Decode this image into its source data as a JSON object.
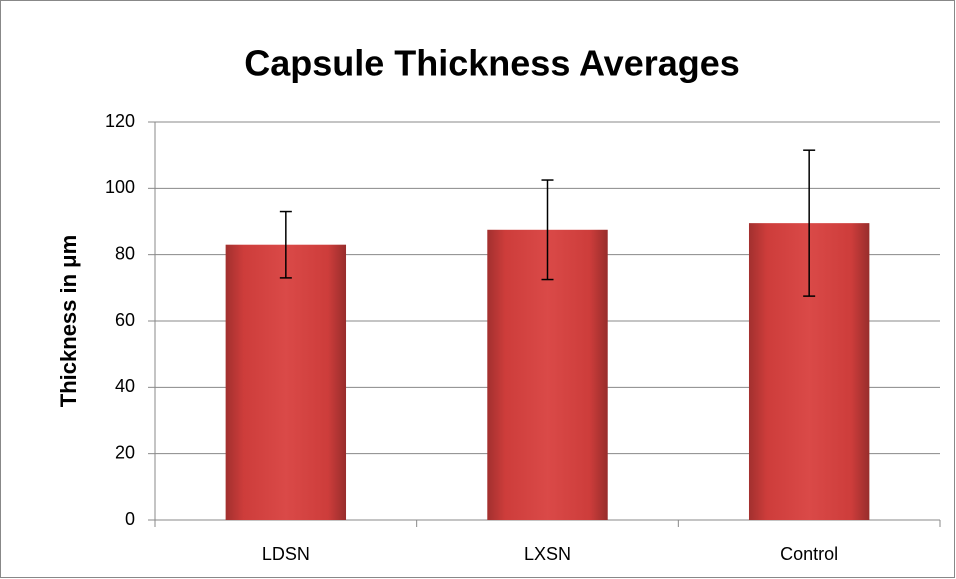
{
  "chart_data": {
    "type": "bar",
    "title": "Capsule Thickness Averages",
    "y_label": "Thickness in μm",
    "categories": [
      "LDSN",
      "LXSN",
      "Control"
    ],
    "values": [
      83,
      87.5,
      89.5
    ],
    "errors": [
      10,
      15,
      22
    ],
    "color": "#d8403e",
    "ylim": [
      0,
      120
    ],
    "yticks": [
      0,
      20,
      40,
      60,
      80,
      100,
      120
    ],
    "grid": true
  }
}
